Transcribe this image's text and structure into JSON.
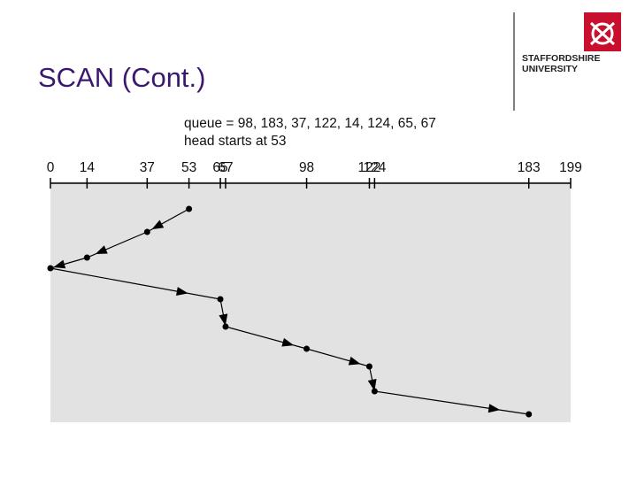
{
  "slide": {
    "title": "SCAN (Cont.)",
    "logo_line1": "STAFFORDSHIRE",
    "logo_line2": "UNIVERSITY"
  },
  "chart_data": {
    "type": "scan-path",
    "annotations": [
      "queue = 98, 183, 37, 122, 14, 124, 65, 67",
      "head starts at 53"
    ],
    "x": [
      53,
      37,
      14,
      0,
      65,
      67,
      98,
      122,
      124,
      183
    ],
    "xlim": [
      0,
      199
    ],
    "xticks": [
      0,
      14,
      37,
      53,
      65,
      67,
      98,
      122,
      124,
      183,
      199
    ],
    "color": "#000000"
  }
}
